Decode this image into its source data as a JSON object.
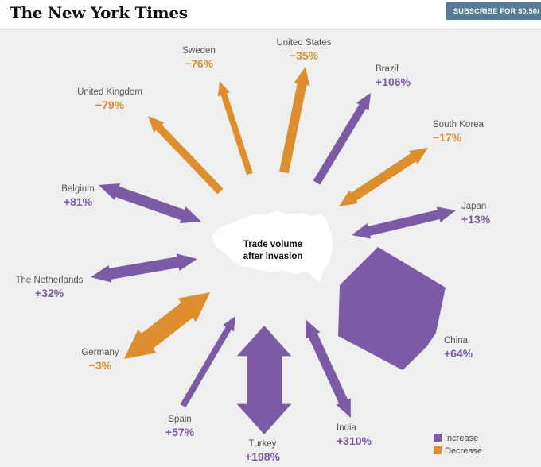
{
  "header": {
    "logo": "The New York Times",
    "subscribe_label": "SUBSCRIBE FOR $0.50/"
  },
  "center": {
    "line1": "Trade volume",
    "line2": "after invasion"
  },
  "colors": {
    "increase": "#7b5ba5",
    "decrease": "#dd8f2f",
    "map_shape": "#ffffff"
  },
  "countries": [
    {
      "name": "United States",
      "value": "−35%",
      "change": -35,
      "type": "decrease"
    },
    {
      "name": "Brazil",
      "value": "+106%",
      "change": 106,
      "type": "increase"
    },
    {
      "name": "South Korea",
      "value": "−17%",
      "change": -17,
      "type": "decrease"
    },
    {
      "name": "Japan",
      "value": "+13%",
      "change": 13,
      "type": "increase"
    },
    {
      "name": "China",
      "value": "+64%",
      "change": 64,
      "type": "increase"
    },
    {
      "name": "India",
      "value": "+310%",
      "change": 310,
      "type": "increase"
    },
    {
      "name": "Turkey",
      "value": "+198%",
      "change": 198,
      "type": "increase"
    },
    {
      "name": "Spain",
      "value": "+57%",
      "change": 57,
      "type": "increase"
    },
    {
      "name": "Germany",
      "value": "−3%",
      "change": -3,
      "type": "decrease"
    },
    {
      "name": "The Netherlands",
      "value": "+32%",
      "change": 32,
      "type": "increase"
    },
    {
      "name": "Belgium",
      "value": "+81%",
      "change": 81,
      "type": "increase"
    },
    {
      "name": "United Kingdom",
      "value": "−79%",
      "change": -79,
      "type": "decrease"
    },
    {
      "name": "Sweden",
      "value": "−76%",
      "change": -76,
      "type": "decrease"
    }
  ],
  "legend": {
    "increase_label": "Increase",
    "decrease_label": "Decrease"
  }
}
